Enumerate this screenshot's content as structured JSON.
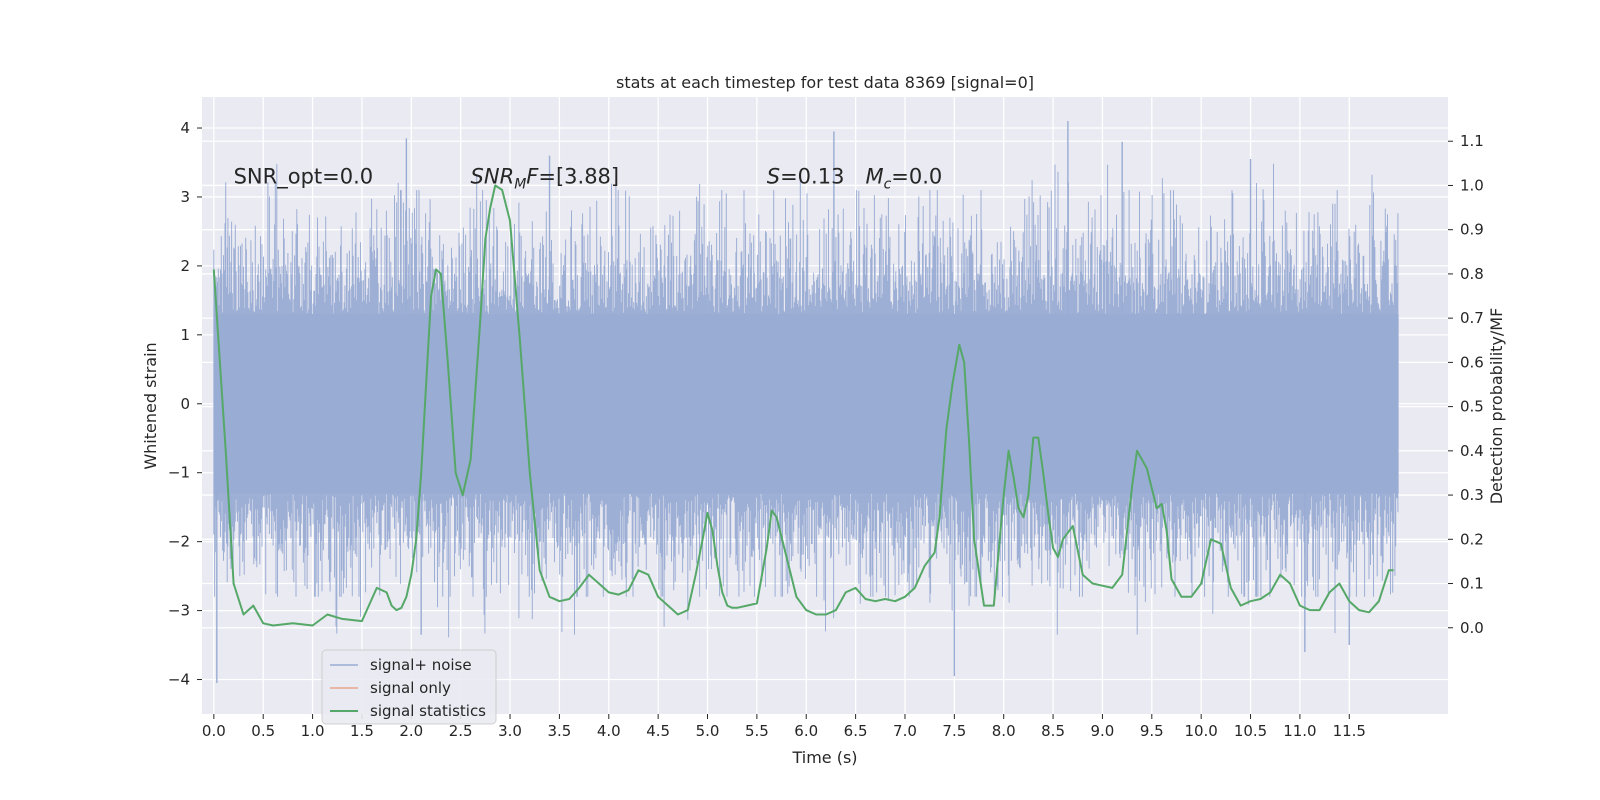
{
  "chart_data": {
    "type": "line",
    "title": "stats at each timestep for test data 8369 [signal=0]",
    "xlabel": "Time (s)",
    "ylabel": "Whitened strain",
    "y2label": "Detection probability/MF",
    "xlim": [
      -0.12,
      12.5
    ],
    "ylim": [
      -4.5,
      4.45
    ],
    "y2lim": [
      -0.195,
      1.2
    ],
    "x_ticks": [
      0.0,
      0.5,
      1.0,
      1.5,
      2.0,
      2.5,
      3.0,
      3.5,
      4.0,
      4.5,
      5.0,
      5.5,
      6.0,
      6.5,
      7.0,
      7.5,
      8.0,
      8.5,
      9.0,
      9.5,
      10.0,
      10.5,
      11.0,
      11.5
    ],
    "x_tick_labels": [
      "0.0",
      "0.5",
      "1.0",
      "1.5",
      "2.0",
      "2.5",
      "3.0",
      "3.5",
      "4.0",
      "4.5",
      "5.0",
      "5.5",
      "6.0",
      "6.5",
      "7.0",
      "7.5",
      "8.0",
      "8.5",
      "9.0",
      "9.5",
      "10.0",
      "10.5",
      "11.0",
      "11.5"
    ],
    "y_ticks": [
      -4,
      -3,
      -2,
      -1,
      0,
      1,
      2,
      3,
      4
    ],
    "y_tick_labels": [
      "−4",
      "−3",
      "−2",
      "−1",
      "0",
      "1",
      "2",
      "3",
      "4"
    ],
    "y2_ticks": [
      0.0,
      0.1,
      0.2,
      0.3,
      0.4,
      0.5,
      0.6,
      0.7,
      0.8,
      0.9,
      1.0,
      1.1
    ],
    "y2_tick_labels": [
      "0.0",
      "0.1",
      "0.2",
      "0.3",
      "0.4",
      "0.5",
      "0.6",
      "0.7",
      "0.8",
      "0.9",
      "1.0",
      "1.1"
    ],
    "grid": true,
    "legend_position": "lower-left",
    "annotations": [
      {
        "text": "SNR_opt=0.0",
        "x": 0.2,
        "y": 3.3
      },
      {
        "text": "SNR_MF=[3.88]",
        "x": 2.6,
        "y": 3.3
      },
      {
        "text": "S=0.13",
        "x": 5.6,
        "y": 3.3
      },
      {
        "text": "M_c=0.0",
        "x": 6.6,
        "y": 3.3
      }
    ],
    "series": [
      {
        "name": "signal+ noise",
        "axis": "left",
        "color": "#99acd3",
        "x_range": [
          0.0,
          12.0
        ],
        "band_core": [
          -1.3,
          1.3
        ],
        "envelope": [
          -2.6,
          2.9
        ],
        "sampled_peaks": [
          {
            "x": 0.03,
            "y": -4.05
          },
          {
            "x": 1.95,
            "y": 3.85
          },
          {
            "x": 2.1,
            "y": -3.35
          },
          {
            "x": 3.4,
            "y": 3.6
          },
          {
            "x": 6.28,
            "y": 3.95
          },
          {
            "x": 7.5,
            "y": -3.95
          },
          {
            "x": 8.65,
            "y": 4.1
          },
          {
            "x": 9.2,
            "y": 3.8
          },
          {
            "x": 10.5,
            "y": 3.55
          },
          {
            "x": 11.05,
            "y": -3.6
          },
          {
            "x": 11.5,
            "y": -3.5
          }
        ]
      },
      {
        "name": "signal only",
        "axis": "left",
        "color": "#e8a58b",
        "x": [],
        "y": []
      },
      {
        "name": "signal statistics",
        "axis": "right",
        "color": "#55a868",
        "x": [
          0.0,
          0.12,
          0.2,
          0.3,
          0.4,
          0.5,
          0.6,
          0.8,
          1.0,
          1.15,
          1.3,
          1.5,
          1.65,
          1.75,
          1.8,
          1.85,
          1.9,
          1.95,
          2.0,
          2.05,
          2.1,
          2.15,
          2.2,
          2.25,
          2.3,
          2.37,
          2.45,
          2.52,
          2.6,
          2.7,
          2.75,
          2.8,
          2.85,
          2.92,
          3.0,
          3.1,
          3.2,
          3.3,
          3.4,
          3.5,
          3.6,
          3.7,
          3.8,
          3.9,
          4.0,
          4.1,
          4.2,
          4.3,
          4.4,
          4.5,
          4.6,
          4.7,
          4.8,
          4.88,
          4.95,
          5.0,
          5.05,
          5.1,
          5.15,
          5.2,
          5.25,
          5.3,
          5.4,
          5.5,
          5.6,
          5.65,
          5.7,
          5.8,
          5.9,
          6.0,
          6.1,
          6.2,
          6.3,
          6.4,
          6.5,
          6.6,
          6.7,
          6.8,
          6.9,
          7.0,
          7.1,
          7.2,
          7.3,
          7.35,
          7.42,
          7.48,
          7.55,
          7.6,
          7.65,
          7.7,
          7.8,
          7.9,
          8.0,
          8.05,
          8.1,
          8.15,
          8.2,
          8.25,
          8.3,
          8.35,
          8.4,
          8.45,
          8.5,
          8.55,
          8.6,
          8.7,
          8.8,
          8.9,
          9.0,
          9.1,
          9.2,
          9.3,
          9.35,
          9.45,
          9.55,
          9.6,
          9.65,
          9.7,
          9.8,
          9.9,
          10.0,
          10.1,
          10.2,
          10.3,
          10.4,
          10.5,
          10.6,
          10.7,
          10.8,
          10.9,
          11.0,
          11.1,
          11.2,
          11.3,
          11.4,
          11.5,
          11.6,
          11.7,
          11.8,
          11.9,
          11.95
        ],
        "y": [
          0.81,
          0.4,
          0.1,
          0.03,
          0.05,
          0.01,
          0.005,
          0.01,
          0.005,
          0.03,
          0.02,
          0.015,
          0.09,
          0.08,
          0.05,
          0.04,
          0.045,
          0.07,
          0.12,
          0.2,
          0.35,
          0.55,
          0.75,
          0.81,
          0.8,
          0.6,
          0.35,
          0.3,
          0.38,
          0.7,
          0.88,
          0.95,
          1.0,
          0.99,
          0.92,
          0.65,
          0.35,
          0.13,
          0.07,
          0.06,
          0.065,
          0.09,
          0.12,
          0.1,
          0.08,
          0.075,
          0.085,
          0.13,
          0.12,
          0.07,
          0.05,
          0.03,
          0.04,
          0.12,
          0.2,
          0.26,
          0.22,
          0.14,
          0.08,
          0.05,
          0.045,
          0.045,
          0.05,
          0.055,
          0.18,
          0.265,
          0.25,
          0.16,
          0.07,
          0.04,
          0.03,
          0.03,
          0.04,
          0.08,
          0.09,
          0.065,
          0.06,
          0.065,
          0.06,
          0.07,
          0.09,
          0.14,
          0.17,
          0.25,
          0.45,
          0.55,
          0.64,
          0.6,
          0.42,
          0.2,
          0.05,
          0.05,
          0.3,
          0.4,
          0.34,
          0.27,
          0.25,
          0.3,
          0.43,
          0.43,
          0.35,
          0.26,
          0.18,
          0.16,
          0.2,
          0.23,
          0.12,
          0.1,
          0.095,
          0.09,
          0.12,
          0.32,
          0.4,
          0.36,
          0.27,
          0.28,
          0.22,
          0.11,
          0.07,
          0.07,
          0.1,
          0.2,
          0.19,
          0.09,
          0.05,
          0.06,
          0.065,
          0.08,
          0.12,
          0.1,
          0.05,
          0.04,
          0.04,
          0.08,
          0.1,
          0.06,
          0.04,
          0.035,
          0.06,
          0.13,
          0.13
        ]
      }
    ]
  }
}
